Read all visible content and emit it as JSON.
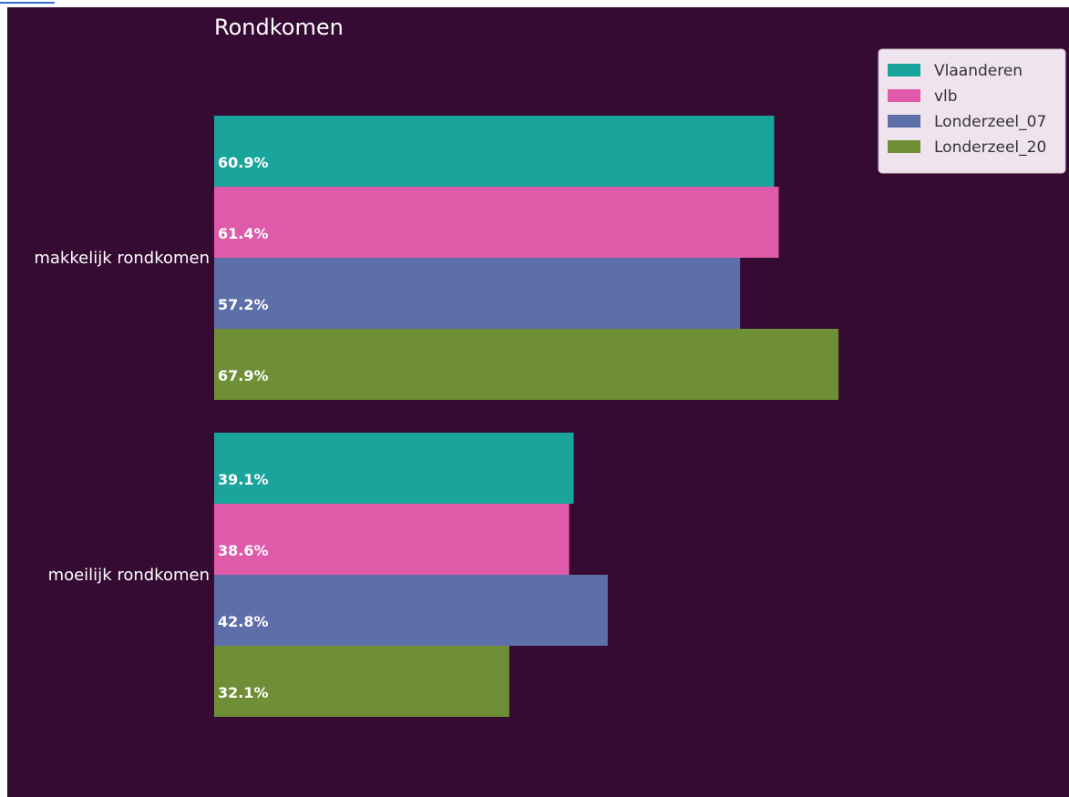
{
  "chart_data": {
    "type": "bar",
    "orientation": "horizontal",
    "title": "Rondkomen",
    "xlabel": "",
    "ylabel": "",
    "categories": [
      "makkelijk rondkomen",
      "moeilijk rondkomen"
    ],
    "series": [
      {
        "name": "Vlaanderen",
        "values": [
          60.9,
          39.1
        ],
        "labels": [
          "60.9%",
          "39.1%"
        ],
        "color": "#1aa59c"
      },
      {
        "name": "vlb",
        "values": [
          61.4,
          38.6
        ],
        "labels": [
          "61.4%",
          "38.6%"
        ],
        "color": "#e05aaa"
      },
      {
        "name": "Londerzeel_07",
        "values": [
          57.2,
          42.8
        ],
        "labels": [
          "57.2%",
          "42.8%"
        ],
        "color": "#5e6ea8"
      },
      {
        "name": "Londerzeel_20",
        "values": [
          67.9,
          32.1
        ],
        "labels": [
          "67.9%",
          "32.1%"
        ],
        "color": "#6f8f36"
      }
    ],
    "xlim": [
      0,
      100
    ],
    "grid": false,
    "legend_position": "top-right",
    "colors": {
      "background": "#350a33",
      "text": "#ffffff",
      "legend_background": "#efe3ee",
      "legend_text": "#333333",
      "frame_edge": "#2e6fd8"
    }
  }
}
